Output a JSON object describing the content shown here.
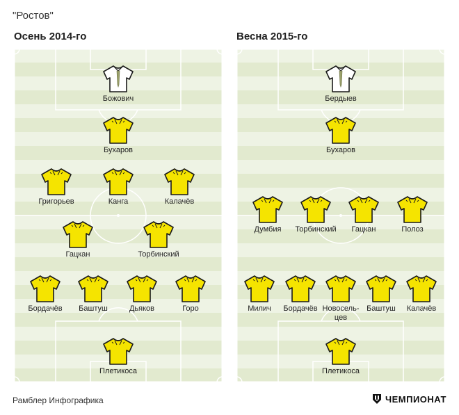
{
  "club_title": "\"Ростов\"",
  "footer": {
    "source": "Рамблер Инфографика",
    "brand": "ЧЕМПИОНАТ"
  },
  "colors": {
    "field_light": "#eef3e4",
    "field_dark": "#e2eacf",
    "lines": "#ffffff",
    "outfield_shirt": "#f5e400",
    "keeper_shirt": "#ffffff"
  },
  "icons": {
    "outfield": "yellow-shirt-icon",
    "keeper": "white-shirt-icon",
    "brand": "championat-logo-icon"
  },
  "formations": [
    {
      "title": "Осень 2014-го",
      "players": [
        {
          "name": "Божович",
          "role": "keeper"
        },
        {
          "name": "Бухаров",
          "role": "outfield"
        },
        {
          "name": "Григорьев",
          "role": "outfield"
        },
        {
          "name": "Канга",
          "role": "outfield"
        },
        {
          "name": "Калачёв",
          "role": "outfield"
        },
        {
          "name": "Гацкан",
          "role": "outfield"
        },
        {
          "name": "Торбинский",
          "role": "outfield"
        },
        {
          "name": "Бордачёв",
          "role": "outfield"
        },
        {
          "name": "Баштуш",
          "role": "outfield"
        },
        {
          "name": "Дьяков",
          "role": "outfield"
        },
        {
          "name": "Горо",
          "role": "outfield"
        },
        {
          "name": "Плетикоса",
          "role": "outfield"
        }
      ]
    },
    {
      "title": "Весна 2015-го",
      "players": [
        {
          "name": "Бердыев",
          "role": "keeper"
        },
        {
          "name": "Бухаров",
          "role": "outfield"
        },
        {
          "name": "Думбия",
          "role": "outfield"
        },
        {
          "name": "Торбинский",
          "role": "outfield"
        },
        {
          "name": "Гацкан",
          "role": "outfield"
        },
        {
          "name": "Полоз",
          "role": "outfield"
        },
        {
          "name": "Милич",
          "role": "outfield"
        },
        {
          "name": "Бордачёв",
          "role": "outfield"
        },
        {
          "name": "Новосель-цев",
          "role": "outfield"
        },
        {
          "name": "Баштуш",
          "role": "outfield"
        },
        {
          "name": "Калачёв",
          "role": "outfield"
        },
        {
          "name": "Плетикоса",
          "role": "outfield"
        }
      ]
    }
  ]
}
